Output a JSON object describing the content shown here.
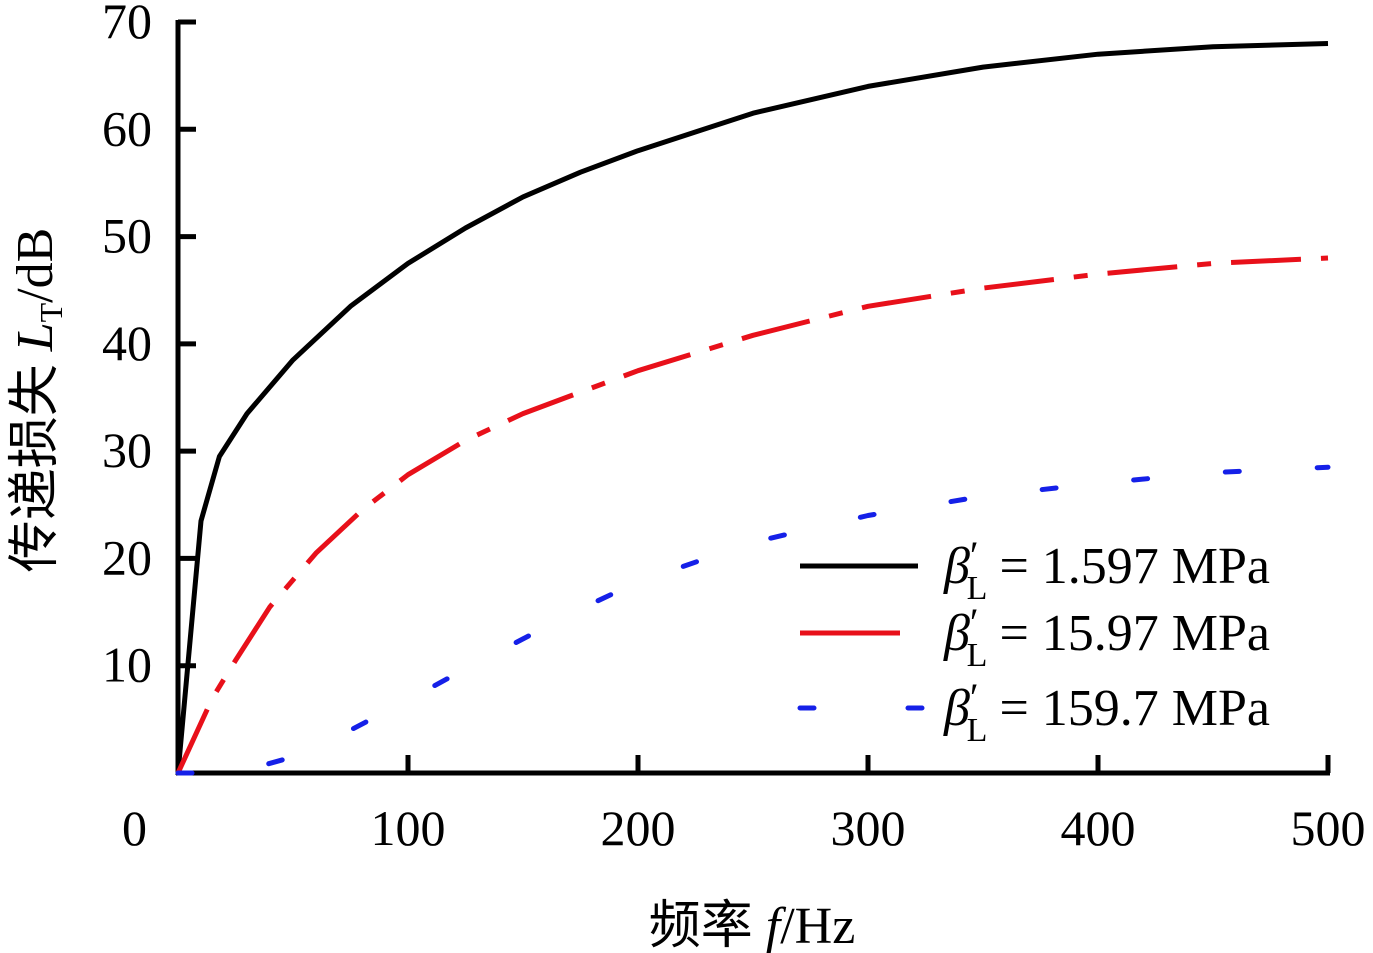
{
  "chart_data": {
    "type": "line",
    "title": "",
    "xlabel": {
      "prefix": "频率 ",
      "var": "f",
      "unit": "/Hz"
    },
    "ylabel": {
      "prefix": "传递损失 ",
      "var": "L",
      "sub": "T",
      "unit": "/dB"
    },
    "xlim": [
      0,
      500
    ],
    "ylim": [
      0,
      70
    ],
    "x_ticks": [
      0,
      100,
      200,
      300,
      400,
      500
    ],
    "y_ticks": [
      10,
      20,
      30,
      40,
      50,
      60,
      70
    ],
    "x_tick_labels": [
      "0",
      "100",
      "200",
      "300",
      "400",
      "500"
    ],
    "y_tick_labels": [
      "10",
      "20",
      "30",
      "40",
      "50",
      "60",
      "70"
    ],
    "grid": false,
    "legend_position": "bottom-right",
    "series": [
      {
        "name": "β′L = 1.597 MPa",
        "legend": {
          "sym": "β",
          "prime": "′",
          "sub": "L",
          "rest": "= 1.597 MPa"
        },
        "color": "#000000",
        "style": "solid",
        "x": [
          0,
          10,
          18,
          30,
          50,
          75,
          100,
          125,
          150,
          175,
          200,
          250,
          300,
          350,
          400,
          450,
          500
        ],
        "y": [
          0,
          23.5,
          29.5,
          33.5,
          38.5,
          43.5,
          47.5,
          50.8,
          53.7,
          56.0,
          58.0,
          61.5,
          64.0,
          65.8,
          67.0,
          67.7,
          68.0
        ]
      },
      {
        "name": "β′L = 15.97 MPa",
        "legend": {
          "sym": "β",
          "prime": "′",
          "sub": "L",
          "rest": "= 15.97 MPa"
        },
        "color": "#e8101a",
        "style": "dashdot",
        "x": [
          0,
          15,
          25,
          40,
          60,
          80,
          100,
          125,
          150,
          175,
          200,
          250,
          300,
          350,
          400,
          450,
          500
        ],
        "y": [
          0,
          7.0,
          10.5,
          15.5,
          20.5,
          24.5,
          27.8,
          31.0,
          33.5,
          35.5,
          37.5,
          40.8,
          43.5,
          45.2,
          46.5,
          47.5,
          48.0
        ]
      },
      {
        "name": "β′L = 159.7 MPa",
        "legend": {
          "sym": "β",
          "prime": "′",
          "sub": "L",
          "rest": "= 159.7 MPa"
        },
        "color": "#1520e8",
        "style": "dotted",
        "x": [
          0,
          25,
          50,
          75,
          100,
          125,
          150,
          175,
          200,
          250,
          300,
          350,
          400,
          450,
          500
        ],
        "y": [
          0,
          0.0,
          1.5,
          4.0,
          6.8,
          9.7,
          12.5,
          15.3,
          17.8,
          21.5,
          24.0,
          25.8,
          27.0,
          28.0,
          28.5
        ]
      }
    ]
  }
}
